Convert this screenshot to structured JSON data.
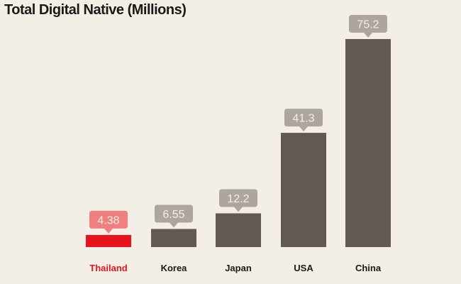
{
  "chart_data": {
    "type": "bar",
    "title": "Total Digital Native (Millions)",
    "categories": [
      "Thailand",
      "Korea",
      "Japan",
      "USA",
      "China"
    ],
    "values": [
      4.38,
      6.55,
      12.2,
      41.3,
      75.2
    ],
    "value_labels": [
      "4.38",
      "6.55",
      "12.2",
      "41.3",
      "75.2"
    ],
    "xlabel": "",
    "ylabel": "",
    "ylim": [
      0,
      75.2
    ],
    "grid": false,
    "highlight_category": "Thailand",
    "colors": {
      "bar": "#625955",
      "highlight_bar": "#e8141b",
      "label_box": "#aca5a0",
      "highlight_label_box": "#f07f7f",
      "label_text": "#f3efe6",
      "category_text": "#1a1a1a",
      "highlight_category_text": "#e8141b"
    }
  }
}
